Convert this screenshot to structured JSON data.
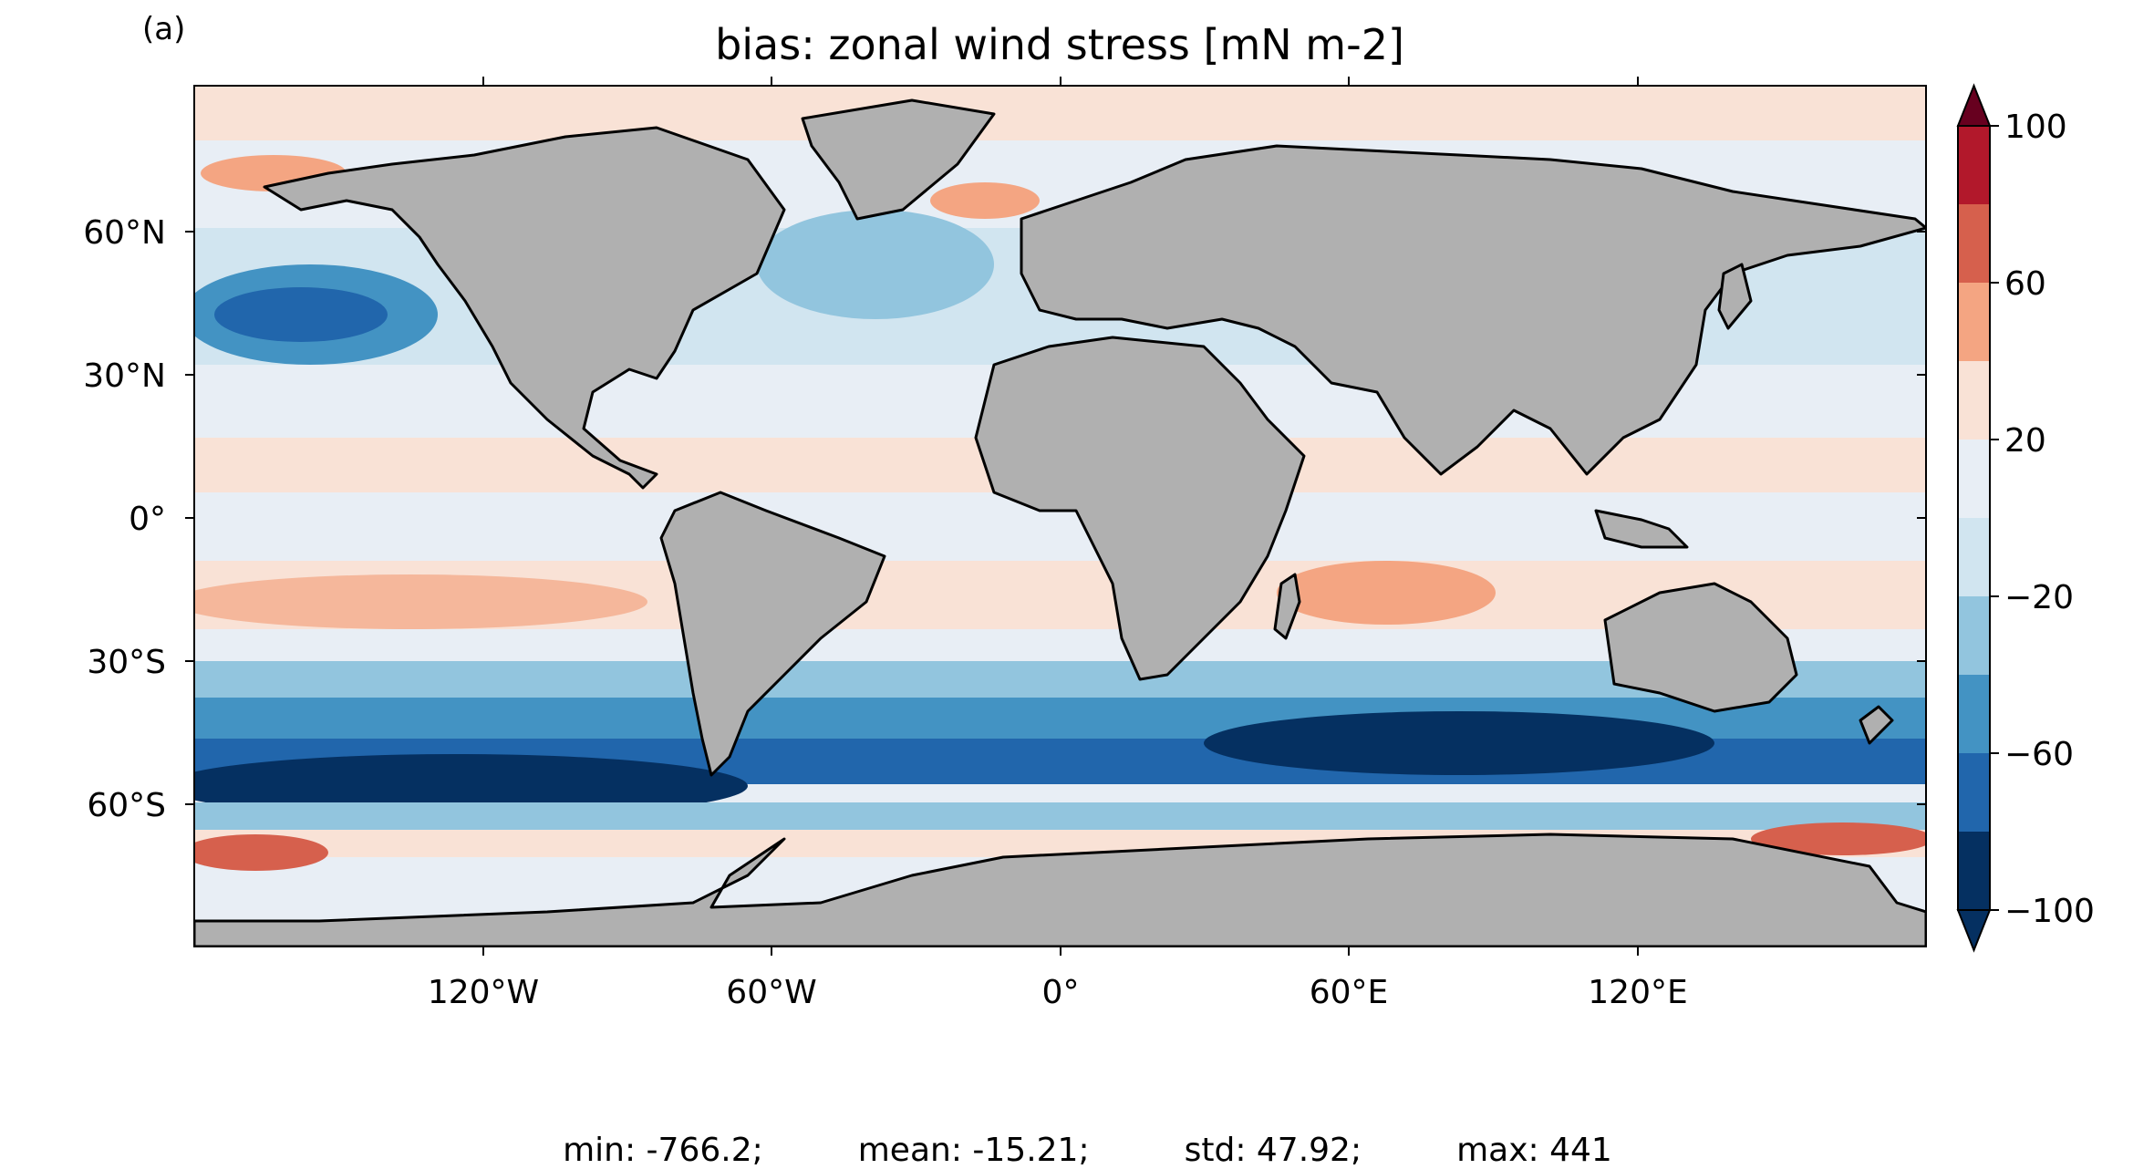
{
  "panel_label": "(a)",
  "title": "bias: zonal wind stress [mN m-2]",
  "map": {
    "projection": "PlateCarree",
    "lon_ticks": [
      "120°W",
      "60°W",
      "0°",
      "60°E",
      "120°E"
    ],
    "lat_ticks": [
      "60°N",
      "30°N",
      "0°",
      "30°S",
      "60°S"
    ],
    "land_color": "#b0b0b0",
    "coastline_color": "#000000"
  },
  "colorbar": {
    "cmap": "RdBu_r",
    "extend": "both",
    "levels": [
      -100,
      -80,
      -60,
      -40,
      -20,
      0,
      20,
      40,
      60,
      80,
      100
    ],
    "colors": [
      "#053061",
      "#2166ac",
      "#4393c3",
      "#92c5de",
      "#d1e5f0",
      "#e8eef5",
      "#f9e2d6",
      "#f4a582",
      "#d6604d",
      "#b2182b",
      "#67001f"
    ],
    "tick_labels": [
      "100",
      "60",
      "20",
      "−20",
      "−60",
      "−100"
    ]
  },
  "stats": {
    "min": "min: -766.2;",
    "mean": "mean: -15.21;",
    "std": "std: 47.92;",
    "max": "max: 441"
  }
}
